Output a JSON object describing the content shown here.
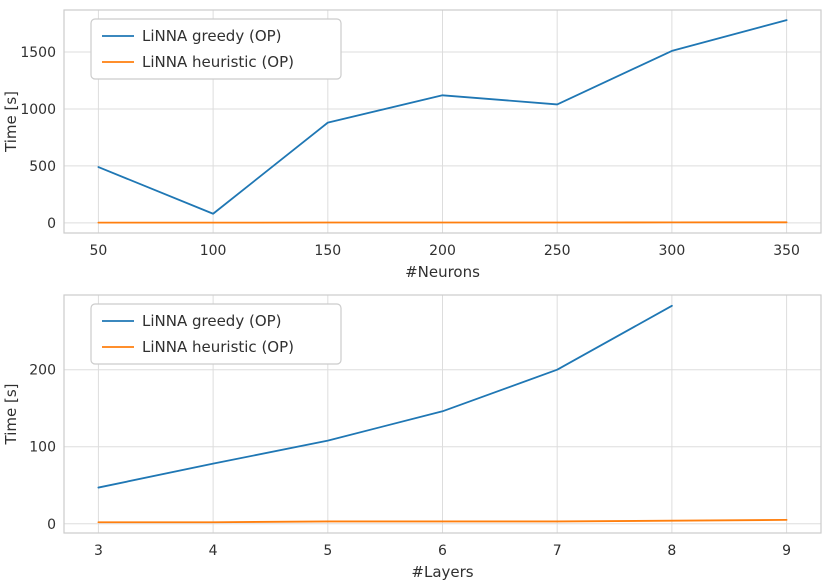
{
  "page": {
    "background": "#ffffff",
    "grid_color": "#dddddd",
    "spine_color": "#cccccc",
    "text_color": "#303030"
  },
  "chart_data": [
    {
      "type": "line",
      "title": "",
      "xlabel": "#Neurons",
      "ylabel": "Time [s]",
      "grid": true,
      "legend_position": "upper left",
      "xlim": [
        35,
        365
      ],
      "ylim": [
        -89,
        1869
      ],
      "xticks": [
        50,
        100,
        150,
        200,
        250,
        300,
        350
      ],
      "yticks": [
        0,
        500,
        1000,
        1500
      ],
      "series": [
        {
          "name": "LiNNA greedy (OP)",
          "color": "#1f77b4",
          "x": [
            50,
            100,
            150,
            200,
            250,
            300,
            350
          ],
          "y": [
            490,
            80,
            880,
            1120,
            1040,
            1510,
            1780
          ]
        },
        {
          "name": "LiNNA heuristic (OP)",
          "color": "#ff7f0e",
          "x": [
            50,
            100,
            150,
            200,
            250,
            300,
            350
          ],
          "y": [
            2,
            2,
            3,
            3,
            3,
            4,
            5
          ]
        }
      ]
    },
    {
      "type": "line",
      "title": "",
      "xlabel": "#Layers",
      "ylabel": "Time [s]",
      "grid": true,
      "legend_position": "upper left",
      "xlim": [
        2.7,
        9.3
      ],
      "ylim": [
        -12,
        297
      ],
      "xticks": [
        3,
        4,
        5,
        6,
        7,
        8,
        9
      ],
      "yticks": [
        0,
        100,
        200
      ],
      "series": [
        {
          "name": "LiNNA greedy (OP)",
          "color": "#1f77b4",
          "x": [
            3,
            4,
            5,
            6,
            7,
            8
          ],
          "y": [
            47,
            78,
            108,
            146,
            200,
            283
          ]
        },
        {
          "name": "LiNNA heuristic (OP)",
          "color": "#ff7f0e",
          "x": [
            3,
            4,
            5,
            6,
            7,
            8,
            9
          ],
          "y": [
            2,
            2,
            3,
            3,
            3,
            4,
            5
          ]
        }
      ]
    }
  ]
}
